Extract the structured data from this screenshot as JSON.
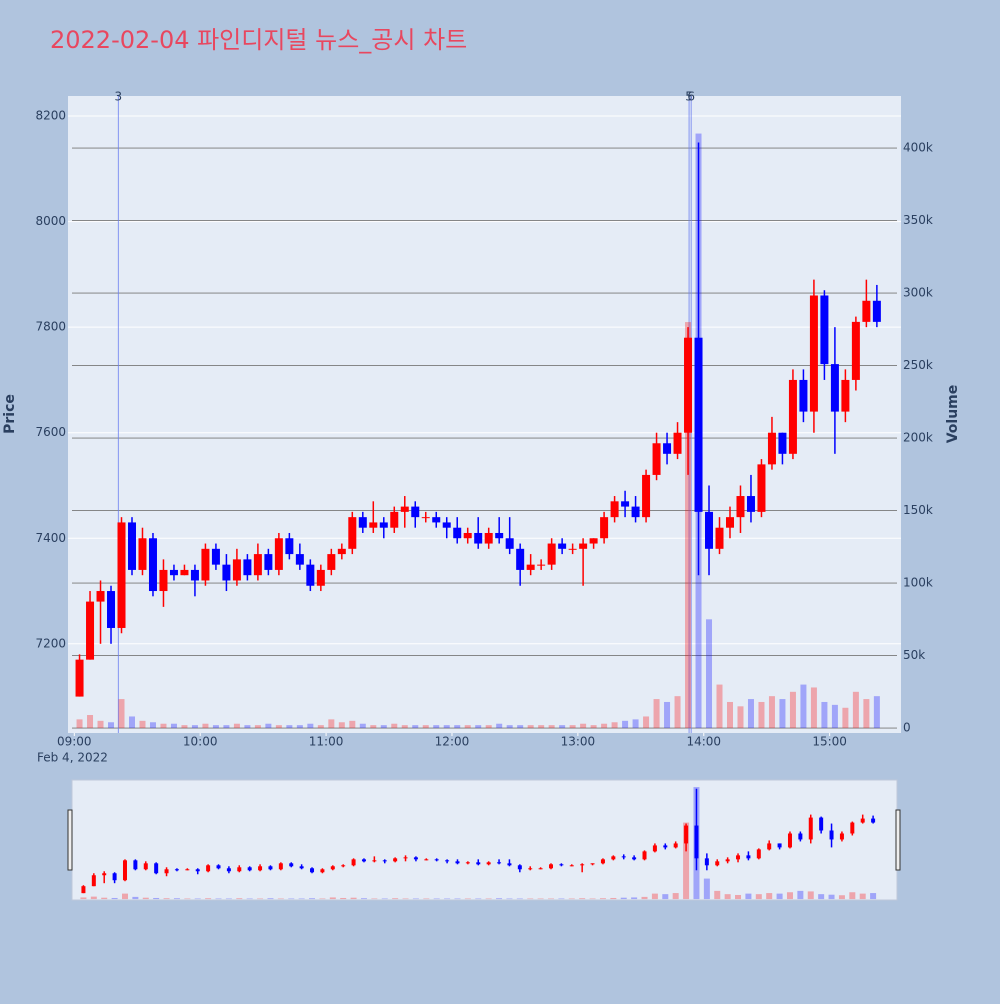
{
  "chart_data": {
    "type": "candlestick",
    "title": "2022-02-04 파인디지털 뉴스_공시 차트",
    "y_title": "Price",
    "y2_title": "Volume",
    "x_date_label": "Feb 4, 2022",
    "increasing_color": "#ff0000",
    "decreasing_color": "#0000ff",
    "x": [
      "2022-02-04 09:00",
      "2022-02-04 09:05",
      "2022-02-04 09:10",
      "2022-02-04 09:15",
      "2022-02-04 09:20",
      "2022-02-04 09:25",
      "2022-02-04 09:30",
      "2022-02-04 09:35",
      "2022-02-04 09:40",
      "2022-02-04 09:45",
      "2022-02-04 09:50",
      "2022-02-04 09:55",
      "2022-02-04 10:00",
      "2022-02-04 10:05",
      "2022-02-04 10:10",
      "2022-02-04 10:15",
      "2022-02-04 10:20",
      "2022-02-04 10:25",
      "2022-02-04 10:30",
      "2022-02-04 10:35",
      "2022-02-04 10:40",
      "2022-02-04 10:45",
      "2022-02-04 10:50",
      "2022-02-04 10:55",
      "2022-02-04 11:00",
      "2022-02-04 11:05",
      "2022-02-04 11:10",
      "2022-02-04 11:15",
      "2022-02-04 11:20",
      "2022-02-04 11:25",
      "2022-02-04 11:30",
      "2022-02-04 11:35",
      "2022-02-04 11:40",
      "2022-02-04 11:45",
      "2022-02-04 11:50",
      "2022-02-04 11:55",
      "2022-02-04 12:00",
      "2022-02-04 12:05",
      "2022-02-04 12:10",
      "2022-02-04 12:15",
      "2022-02-04 12:20",
      "2022-02-04 12:25",
      "2022-02-04 12:30",
      "2022-02-04 12:35",
      "2022-02-04 12:40",
      "2022-02-04 12:45",
      "2022-02-04 12:50",
      "2022-02-04 12:55",
      "2022-02-04 13:00",
      "2022-02-04 13:05",
      "2022-02-04 13:10",
      "2022-02-04 13:15",
      "2022-02-04 13:20",
      "2022-02-04 13:25",
      "2022-02-04 13:30",
      "2022-02-04 13:35",
      "2022-02-04 13:40",
      "2022-02-04 13:45",
      "2022-02-04 13:50",
      "2022-02-04 13:55",
      "2022-02-04 14:00",
      "2022-02-04 14:05",
      "2022-02-04 14:10",
      "2022-02-04 14:15",
      "2022-02-04 14:20",
      "2022-02-04 14:25",
      "2022-02-04 14:30",
      "2022-02-04 14:35",
      "2022-02-04 14:40",
      "2022-02-04 14:45",
      "2022-02-04 14:50",
      "2022-02-04 14:55",
      "2022-02-04 15:00",
      "2022-02-04 15:05",
      "2022-02-04 15:10",
      "2022-02-04 15:15",
      "2022-02-04 15:20"
    ],
    "open": [
      7100,
      7170,
      7280,
      7300,
      7230,
      7430,
      7340,
      7400,
      7300,
      7340,
      7330,
      7340,
      7320,
      7380,
      7350,
      7320,
      7360,
      7330,
      7370,
      7340,
      7400,
      7370,
      7350,
      7310,
      7340,
      7370,
      7380,
      7440,
      7420,
      7430,
      7420,
      7450,
      7460,
      7440,
      7440,
      7430,
      7420,
      7400,
      7410,
      7390,
      7410,
      7400,
      7380,
      7340,
      7350,
      7350,
      7390,
      7380,
      7380,
      7390,
      7400,
      7440,
      7470,
      7460,
      7440,
      7520,
      7580,
      7560,
      7600,
      7780,
      7450,
      7380,
      7420,
      7440,
      7480,
      7450,
      7540,
      7600,
      7560,
      7700,
      7640,
      7860,
      7730,
      7640,
      7700,
      7810,
      7850
    ],
    "high": [
      7180,
      7300,
      7320,
      7310,
      7440,
      7440,
      7420,
      7410,
      7360,
      7350,
      7350,
      7350,
      7390,
      7390,
      7370,
      7380,
      7370,
      7390,
      7380,
      7410,
      7410,
      7390,
      7360,
      7350,
      7380,
      7390,
      7450,
      7450,
      7470,
      7440,
      7460,
      7480,
      7470,
      7450,
      7450,
      7440,
      7440,
      7420,
      7440,
      7420,
      7440,
      7440,
      7390,
      7370,
      7360,
      7400,
      7400,
      7390,
      7400,
      7400,
      7450,
      7480,
      7490,
      7480,
      7530,
      7600,
      7600,
      7620,
      7800,
      8150,
      7500,
      7440,
      7460,
      7500,
      7520,
      7550,
      7630,
      7600,
      7720,
      7720,
      7890,
      7870,
      7800,
      7720,
      7820,
      7890,
      7880
    ],
    "low": [
      7100,
      7170,
      7200,
      7200,
      7220,
      7330,
      7330,
      7290,
      7270,
      7320,
      7330,
      7290,
      7310,
      7340,
      7300,
      7310,
      7320,
      7320,
      7330,
      7330,
      7360,
      7340,
      7300,
      7300,
      7330,
      7360,
      7370,
      7410,
      7410,
      7400,
      7410,
      7420,
      7420,
      7430,
      7420,
      7400,
      7390,
      7390,
      7380,
      7380,
      7390,
      7370,
      7310,
      7330,
      7340,
      7340,
      7370,
      7370,
      7310,
      7380,
      7390,
      7430,
      7440,
      7430,
      7430,
      7510,
      7540,
      7550,
      7520,
      7330,
      7330,
      7370,
      7400,
      7410,
      7430,
      7440,
      7530,
      7540,
      7550,
      7620,
      7600,
      7700,
      7560,
      7620,
      7680,
      7800,
      7800
    ],
    "close": [
      7170,
      7280,
      7300,
      7230,
      7430,
      7340,
      7400,
      7300,
      7340,
      7330,
      7340,
      7320,
      7380,
      7350,
      7320,
      7360,
      7330,
      7370,
      7340,
      7400,
      7370,
      7350,
      7310,
      7340,
      7370,
      7380,
      7440,
      7420,
      7430,
      7420,
      7450,
      7460,
      7440,
      7440,
      7430,
      7420,
      7400,
      7410,
      7390,
      7410,
      7400,
      7380,
      7340,
      7350,
      7350,
      7390,
      7380,
      7380,
      7390,
      7400,
      7440,
      7470,
      7460,
      7440,
      7520,
      7580,
      7560,
      7600,
      7780,
      7450,
      7380,
      7420,
      7440,
      7480,
      7450,
      7540,
      7600,
      7560,
      7700,
      7640,
      7860,
      7730,
      7640,
      7700,
      7810,
      7850,
      7810
    ],
    "volume": [
      6000,
      9000,
      5000,
      4000,
      20000,
      8000,
      5000,
      4000,
      3000,
      3000,
      2000,
      2000,
      3000,
      2000,
      2000,
      3000,
      2000,
      2000,
      3000,
      2000,
      2000,
      2000,
      3000,
      2000,
      6000,
      4000,
      5000,
      3000,
      2000,
      2000,
      3000,
      2000,
      2000,
      2000,
      2000,
      2000,
      2000,
      2000,
      2000,
      2000,
      3000,
      2000,
      2000,
      2000,
      2000,
      2000,
      2000,
      2000,
      3000,
      2000,
      3000,
      4000,
      5000,
      6000,
      8000,
      20000,
      18000,
      22000,
      280000,
      410000,
      75000,
      30000,
      18000,
      15000,
      20000,
      18000,
      22000,
      20000,
      25000,
      30000,
      28000,
      18000,
      16000,
      14000,
      25000,
      20000,
      22000
    ],
    "annotations": [
      {
        "x": "2022-02-04 09:21",
        "text": "3"
      },
      {
        "x": "2022-02-04 13:53",
        "text": "5"
      },
      {
        "x": "2022-02-04 13:54",
        "text": "6"
      }
    ],
    "xlim": [
      "2022-02-04 08:57",
      "2022-02-04 15:34"
    ],
    "xticks": [
      {
        "value": "2022-02-04 09:00",
        "label": "09:00"
      },
      {
        "value": "2022-02-04 10:00",
        "label": "10:00"
      },
      {
        "value": "2022-02-04 11:00",
        "label": "11:00"
      },
      {
        "value": "2022-02-04 12:00",
        "label": "12:00"
      },
      {
        "value": "2022-02-04 13:00",
        "label": "13:00"
      },
      {
        "value": "2022-02-04 14:00",
        "label": "14:00"
      },
      {
        "value": "2022-02-04 15:00",
        "label": "15:00"
      }
    ],
    "ylim": [
      7031,
      8238
    ],
    "yticks": [
      7200,
      7400,
      7600,
      7800,
      8000,
      8200
    ],
    "y2lim": [
      -3400,
      435900
    ],
    "y2ticks": [
      0,
      {
        "value": 50000,
        "label": "50k"
      },
      {
        "value": 100000,
        "label": "100k"
      },
      {
        "value": 150000,
        "label": "150k"
      },
      {
        "value": 200000,
        "label": "200k"
      },
      {
        "value": 250000,
        "label": "250k"
      },
      {
        "value": 300000,
        "label": "300k"
      },
      {
        "value": 350000,
        "label": "350k"
      },
      {
        "value": 400000,
        "label": "400k"
      }
    ],
    "grid": true,
    "rangeslider": true
  }
}
